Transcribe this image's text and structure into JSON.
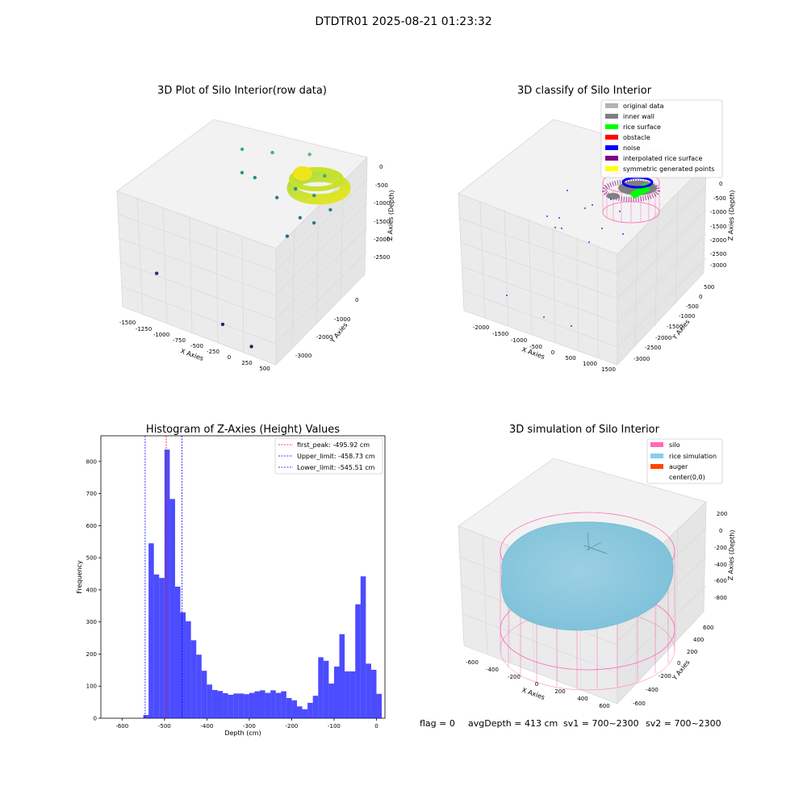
{
  "figure": {
    "suptitle": "DTDTR01 2025-08-21 01:23:32",
    "status_line": {
      "flag": "flag = 0",
      "avg_depth": "avgDepth = 413 cm",
      "sv1": "sv1 = 700~2300",
      "sv2": "sv2 = 700~2300"
    }
  },
  "chart_data": [
    {
      "type": "scatter",
      "projection": "3d",
      "title": "3D Plot of Silo Interior(row data)",
      "xlabel": "X Axies",
      "ylabel": "Y Axies",
      "zlabel": "Z Axies (Depth)",
      "x_ticks": [
        "-1500",
        "-1250",
        "-1000",
        "-750",
        "-500",
        "-250",
        "0",
        "250",
        "500"
      ],
      "y_ticks": [
        "-3000",
        "-2000",
        "-1000",
        "0"
      ],
      "z_ticks": [
        "0",
        "-500",
        "-1000",
        "-1500",
        "-2000",
        "-2500"
      ],
      "xlim": [
        -1600,
        600
      ],
      "ylim": [
        -3300,
        300
      ],
      "zlim": [
        -2800,
        200
      ],
      "colormap": "viridis",
      "points": [
        {
          "x": -1450,
          "y": -2300,
          "z": -2600
        },
        {
          "x": -300,
          "y": -2900,
          "z": -2700
        },
        {
          "x": 180,
          "y": -3100,
          "z": -2800
        },
        {
          "x": -900,
          "y": -300,
          "z": -1200
        },
        {
          "x": -1000,
          "y": 0,
          "z": -900
        },
        {
          "x": -750,
          "y": -200,
          "z": -1300
        },
        {
          "x": -600,
          "y": 100,
          "z": -800
        },
        {
          "x": -400,
          "y": -300,
          "z": -1500
        },
        {
          "x": -200,
          "y": -100,
          "z": -1300
        },
        {
          "x": 0,
          "y": -500,
          "z": -1600
        },
        {
          "x": -100,
          "y": 200,
          "z": -600
        },
        {
          "x": 100,
          "y": -200,
          "z": -1200
        },
        {
          "x": 200,
          "y": -500,
          "z": -1600
        },
        {
          "x": -50,
          "y": -900,
          "z": -1800
        },
        {
          "x": 150,
          "y": 100,
          "z": -900
        },
        {
          "x": 300,
          "y": -100,
          "z": -1500
        }
      ],
      "dense_ring": {
        "center_x": 200,
        "center_y": 100,
        "radius": 300,
        "z_top": -300,
        "z_bottom": -600
      }
    },
    {
      "type": "scatter",
      "projection": "3d",
      "title": "3D classify of Silo Interior",
      "xlabel": "X Axies",
      "ylabel": "Y Axies",
      "zlabel": "Z Axies (Depth)",
      "x_ticks": [
        "-2000",
        "-1500",
        "-1000",
        "-500",
        "0",
        "500",
        "1000",
        "1500"
      ],
      "y_ticks": [
        "-3000",
        "-2500",
        "-2000",
        "-1500",
        "-1000",
        "-500",
        "0",
        "500"
      ],
      "z_ticks": [
        "0",
        "-500",
        "-1000",
        "-1500",
        "-2000",
        "-2500",
        "-3000"
      ],
      "legend": [
        {
          "label": "original data",
          "color": "#b3b3b3"
        },
        {
          "label": "inner wall",
          "color": "#808080"
        },
        {
          "label": "rice surface",
          "color": "#00ff00"
        },
        {
          "label": "obstacle",
          "color": "#ff0000"
        },
        {
          "label": "noise",
          "color": "#0000ff"
        },
        {
          "label": "interpolated rice surface",
          "color": "#800080"
        },
        {
          "label": "symmetric generated points",
          "color": "#ffff00"
        }
      ],
      "legend_placement": "top-right"
    },
    {
      "type": "histogram",
      "title": "Histogram of Z-Axies (Height) Values",
      "xlabel": "Depth (cm)",
      "ylabel": "Frequency",
      "xlim": [
        -650,
        20
      ],
      "ylim": [
        0,
        880
      ],
      "x_ticks": [
        -600,
        -500,
        -400,
        -300,
        -200,
        -100,
        0
      ],
      "y_ticks": [
        0,
        100,
        200,
        300,
        400,
        500,
        600,
        700,
        800
      ],
      "bin_width": 12.5,
      "bins_start": -550,
      "values": [
        10,
        545,
        448,
        437,
        837,
        683,
        410,
        330,
        302,
        243,
        198,
        148,
        105,
        88,
        85,
        78,
        73,
        77,
        77,
        75,
        79,
        84,
        87,
        79,
        87,
        79,
        84,
        63,
        56,
        37,
        28,
        48,
        70,
        190,
        179,
        108,
        161,
        262,
        146,
        146,
        355,
        442,
        170,
        151,
        76
      ],
      "bar_color": "#0000ff",
      "bar_opacity": 0.7,
      "vlines": [
        {
          "x": -495.92,
          "color": "#ff0000",
          "style": "dashed",
          "label": "first_peak: -495.92 cm"
        },
        {
          "x": -458.73,
          "color": "#0000ff",
          "style": "dashed",
          "label": "Upper_limit: -458.73 cm"
        },
        {
          "x": -545.51,
          "color": "#0000ff",
          "style": "dashed",
          "label": "Lower_limit: -545.51 cm"
        }
      ],
      "legend_placement": "top-right"
    },
    {
      "type": "surface",
      "projection": "3d",
      "title": "3D simulation of Silo Interior",
      "xlabel": "X Axies",
      "ylabel": "Y Axies",
      "zlabel": "Z Axies (Depth)",
      "x_ticks": [
        "-600",
        "-400",
        "-200",
        "0",
        "200",
        "400",
        "600"
      ],
      "y_ticks": [
        "-600",
        "-400",
        "-200",
        "0",
        "200",
        "400",
        "600"
      ],
      "z_ticks": [
        "200",
        "0",
        "-200",
        "-400",
        "-600",
        "-800"
      ],
      "legend": [
        {
          "label": "silo",
          "color": "#ff69b4"
        },
        {
          "label": "rice simulation",
          "color": "#87ceeb"
        },
        {
          "label": "auger",
          "color": "#ff4500"
        },
        {
          "label": "center(0,0)",
          "color": ""
        }
      ],
      "legend_placement": "top-right"
    }
  ]
}
